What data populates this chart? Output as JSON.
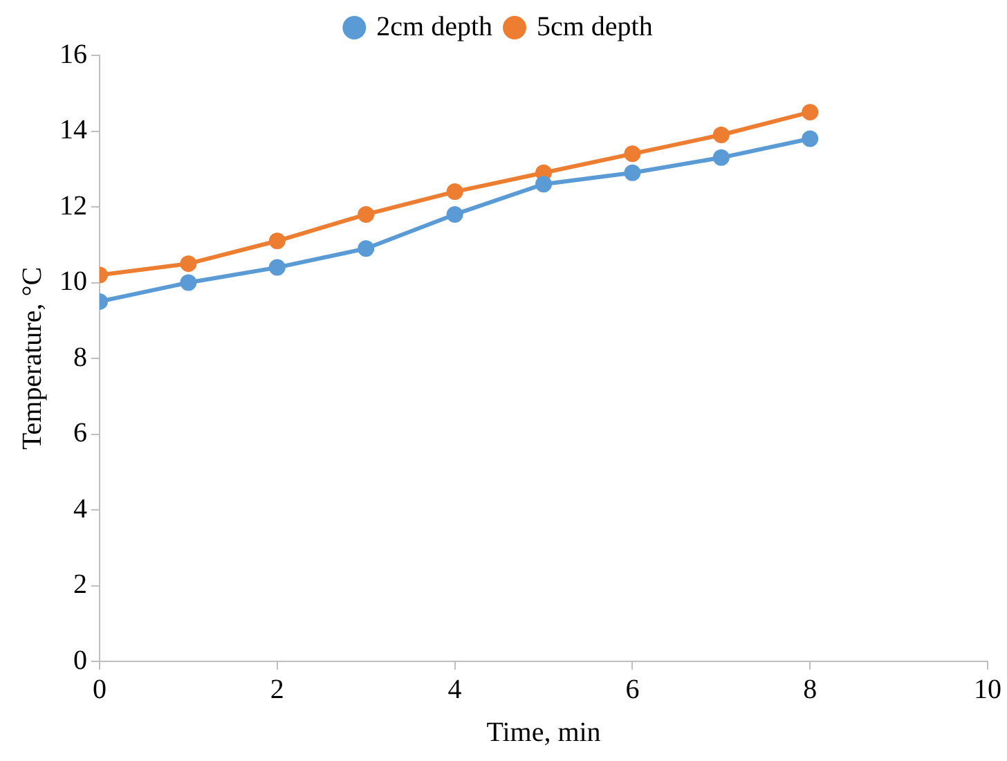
{
  "chart_data": {
    "type": "line",
    "xlabel": "Time, min",
    "ylabel": "Temperature, °C",
    "x": [
      0,
      1,
      2,
      3,
      4,
      5,
      6,
      7,
      8
    ],
    "series": [
      {
        "name": "2cm depth",
        "color": "#5b9bd5",
        "values": [
          9.5,
          10.0,
          10.4,
          10.9,
          11.8,
          12.6,
          12.9,
          13.3,
          13.8
        ]
      },
      {
        "name": "5cm depth",
        "color": "#ed7d31",
        "values": [
          10.2,
          10.5,
          11.1,
          11.8,
          12.4,
          12.9,
          13.4,
          13.9,
          14.5
        ]
      }
    ],
    "xlim": [
      0,
      10
    ],
    "xticks": [
      0,
      2,
      4,
      6,
      8,
      10
    ],
    "ylim": [
      0,
      16
    ],
    "yticks": [
      0,
      2,
      4,
      6,
      8,
      10,
      12,
      14,
      16
    ],
    "grid": false,
    "legend": "top",
    "marker": "circle",
    "line_style": "solid"
  }
}
